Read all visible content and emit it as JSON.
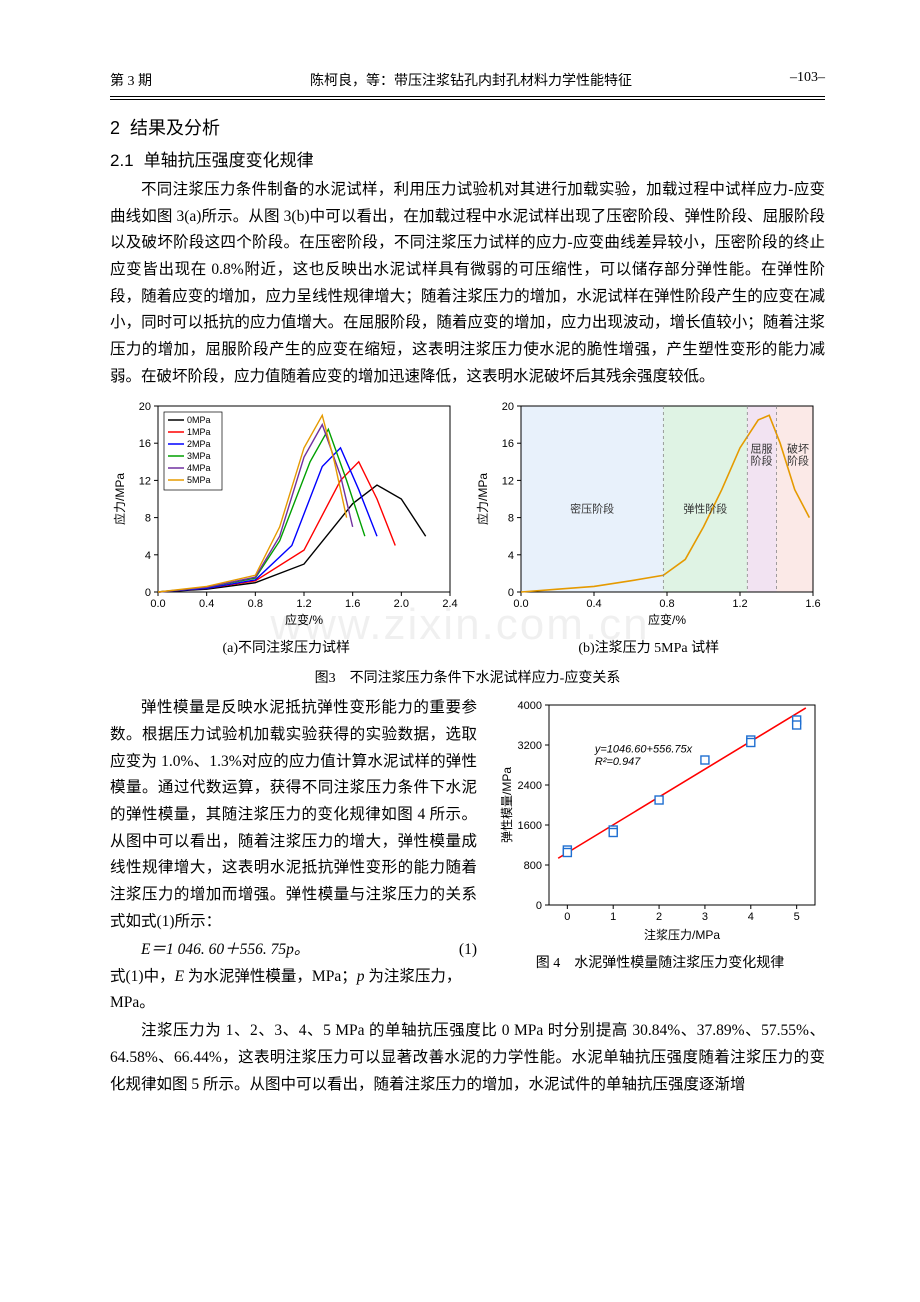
{
  "header": {
    "issue": "第 3 期",
    "author_title": "陈柯良，等：带压注浆钻孔内封孔材料力学性能特征",
    "page": "–103–"
  },
  "section": {
    "num": "2",
    "title": "结果及分析"
  },
  "subsec": {
    "num": "2.1",
    "title": "单轴抗压强度变化规律"
  },
  "para1": "不同注浆压力条件制备的水泥试样，利用压力试验机对其进行加载实验，加载过程中试样应力-应变曲线如图 3(a)所示。从图 3(b)中可以看出，在加载过程中水泥试样出现了压密阶段、弹性阶段、屈服阶段以及破坏阶段这四个阶段。在压密阶段，不同注浆压力试样的应力-应变曲线差异较小，压密阶段的终止应变皆出现在 0.8%附近，这也反映出水泥试样具有微弱的可压缩性，可以储存部分弹性能。在弹性阶段，随着应变的增加，应力呈线性规律增大；随着注浆压力的增加，水泥试样在弹性阶段产生的应变在减小，同时可以抵抗的应力值增大。在屈服阶段，随着应变的增加，应力出现波动，增长值较小；随着注浆压力的增加，屈服阶段产生的应变在缩短，这表明注浆压力使水泥的脆性增强，产生塑性变形的能力减弱。在破坏阶段，应力值随着应变的增加迅速降低，这表明水泥破坏后其残余强度较低。",
  "fig3": {
    "sub_a": "(a)不同注浆压力试样",
    "sub_b": "(b)注浆压力 5MPa 试样",
    "caption": "图3　不同注浆压力条件下水泥试样应力-应变关系",
    "chartA": {
      "type": "line",
      "xlabel": "应变/%",
      "ylabel": "应力/MPa",
      "xlim": [
        0,
        2.4
      ],
      "ylim": [
        0,
        20
      ],
      "xticks": [
        0.0,
        0.4,
        0.8,
        1.2,
        1.6,
        2.0,
        2.4
      ],
      "yticks": [
        0,
        4,
        8,
        12,
        16,
        20
      ],
      "legend": [
        "0MPa",
        "1MPa",
        "2MPa",
        "3MPa",
        "4MPa",
        "5MPa"
      ],
      "colors": [
        "#000000",
        "#ff0000",
        "#0000ff",
        "#00a000",
        "#7030a0",
        "#e59a00"
      ],
      "series": [
        [
          [
            0,
            0
          ],
          [
            0.4,
            0.3
          ],
          [
            0.8,
            1.0
          ],
          [
            1.2,
            3.0
          ],
          [
            1.6,
            9.5
          ],
          [
            1.8,
            11.5
          ],
          [
            2.0,
            10.0
          ],
          [
            2.2,
            6.0
          ]
        ],
        [
          [
            0,
            0
          ],
          [
            0.4,
            0.4
          ],
          [
            0.8,
            1.2
          ],
          [
            1.2,
            4.5
          ],
          [
            1.5,
            12.0
          ],
          [
            1.65,
            14.0
          ],
          [
            1.8,
            10.0
          ],
          [
            1.95,
            5.0
          ]
        ],
        [
          [
            0,
            0
          ],
          [
            0.4,
            0.4
          ],
          [
            0.8,
            1.3
          ],
          [
            1.1,
            5.0
          ],
          [
            1.35,
            13.5
          ],
          [
            1.5,
            15.5
          ],
          [
            1.65,
            11.0
          ],
          [
            1.8,
            6.0
          ]
        ],
        [
          [
            0,
            0
          ],
          [
            0.4,
            0.5
          ],
          [
            0.8,
            1.5
          ],
          [
            1.0,
            5.5
          ],
          [
            1.25,
            14.0
          ],
          [
            1.4,
            17.5
          ],
          [
            1.55,
            12.0
          ],
          [
            1.7,
            6.0
          ]
        ],
        [
          [
            0,
            0
          ],
          [
            0.4,
            0.5
          ],
          [
            0.8,
            1.6
          ],
          [
            1.0,
            6.0
          ],
          [
            1.2,
            14.5
          ],
          [
            1.35,
            18.0
          ],
          [
            1.5,
            12.5
          ],
          [
            1.6,
            7.0
          ]
        ],
        [
          [
            0,
            0
          ],
          [
            0.4,
            0.6
          ],
          [
            0.8,
            1.8
          ],
          [
            1.0,
            7.0
          ],
          [
            1.2,
            15.5
          ],
          [
            1.35,
            19.0
          ],
          [
            1.45,
            14.0
          ],
          [
            1.55,
            8.0
          ]
        ]
      ]
    },
    "chartB": {
      "type": "line",
      "xlabel": "应变/%",
      "ylabel": "应力/MPa",
      "xlim": [
        0,
        1.6
      ],
      "ylim": [
        0,
        20
      ],
      "xticks": [
        0.0,
        0.4,
        0.8,
        1.2,
        1.6
      ],
      "yticks": [
        0,
        4,
        8,
        12,
        16,
        20
      ],
      "color": "#e59a00",
      "series": [
        [
          0,
          0
        ],
        [
          0.2,
          0.3
        ],
        [
          0.4,
          0.6
        ],
        [
          0.6,
          1.2
        ],
        [
          0.78,
          1.8
        ],
        [
          0.9,
          3.5
        ],
        [
          1.0,
          7.0
        ],
        [
          1.1,
          11.0
        ],
        [
          1.2,
          15.5
        ],
        [
          1.3,
          18.5
        ],
        [
          1.36,
          19.0
        ],
        [
          1.42,
          16.0
        ],
        [
          1.5,
          11.0
        ],
        [
          1.58,
          8.0
        ]
      ],
      "stages": [
        {
          "label": "密压阶段",
          "from": 0.0,
          "to": 0.78,
          "fill": "#e8f1fb"
        },
        {
          "label": "弹性阶段",
          "from": 0.78,
          "to": 1.24,
          "fill": "#dff3e4"
        },
        {
          "label": "屈服\n阶段",
          "from": 1.24,
          "to": 1.4,
          "fill": "#f2e3f2"
        },
        {
          "label": "破坏\n阶段",
          "from": 1.4,
          "to": 1.6,
          "fill": "#fbe9e7"
        }
      ]
    }
  },
  "para2": "弹性模量是反映水泥抵抗弹性变形能力的重要参数。根据压力试验机加载实验获得的实验数据，选取应变为 1.0%、1.3%对应的应力值计算水泥试样的弹性模量。通过代数运算，获得不同注浆压力条件下水泥的弹性模量，其随注浆压力的变化规律如图 4 所示。从图中可以看出，随着注浆压力的增大，弹性模量成线性规律增大，这表明水泥抵抗弹性变形的能力随着注浆压力的增加而增强。弹性模量与注浆压力的关系式如式(1)所示：",
  "eq": {
    "text": "E＝1 046. 60＋556. 75p。",
    "num": "(1)"
  },
  "para3_pre": "式(1)中，",
  "para3_mid1": "E",
  "para3_mid2": " 为水泥弹性模量，MPa；",
  "para3_mid3": "p",
  "para3_end": " 为注浆压力，MPa。",
  "fig4": {
    "caption": "图 4　水泥弹性模量随注浆压力变化规律",
    "chart": {
      "type": "scatter+line",
      "xlabel": "注浆压力/MPa",
      "ylabel": "弹性模量/MPa",
      "xlim": [
        -0.4,
        5.4
      ],
      "ylim": [
        0,
        4000
      ],
      "xticks": [
        0,
        1,
        2,
        3,
        4,
        5
      ],
      "yticks": [
        0,
        800,
        1600,
        2400,
        3200,
        4000
      ],
      "points": [
        [
          0,
          1100
        ],
        [
          1,
          1500
        ],
        [
          2,
          2100
        ],
        [
          3,
          2900
        ],
        [
          4,
          3300
        ],
        [
          5,
          3700
        ]
      ],
      "points_alt": [
        [
          0,
          1050
        ],
        [
          1,
          1450
        ],
        [
          4,
          3250
        ],
        [
          5,
          3600
        ]
      ],
      "marker_color": "#1f6fd1",
      "marker_fill": "#ffffff",
      "line_color": "#ff0000",
      "fit_text1": "y=1046.60+556.75x",
      "fit_text2": "R²=0.947",
      "fit": [
        [
          -0.2,
          935
        ],
        [
          5.2,
          3942
        ]
      ]
    }
  },
  "para4": "注浆压力为 1、2、3、4、5 MPa 的单轴抗压强度比 0 MPa 时分别提高 30.84%、37.89%、57.55%、64.58%、66.44%，这表明注浆压力可以显著改善水泥的力学性能。水泥单轴抗压强度随着注浆压力的变化规律如图 5 所示。从图中可以看出，随着注浆压力的增加，水泥试件的单轴抗压强度逐渐增",
  "watermark": "www.zixin.com.cn"
}
